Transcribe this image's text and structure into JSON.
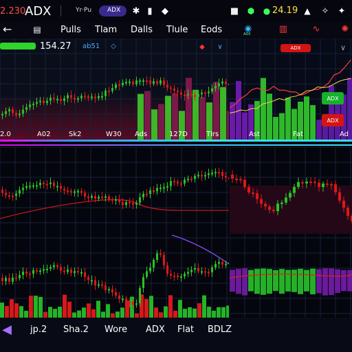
{
  "topbar": {
    "price": "2.230",
    "symbol": "ADX",
    "badge_left": "Yr·Pu",
    "badge_pill": "ADX",
    "right_value": "24.19",
    "icons": [
      "sun-icon",
      "chat-icon",
      "dice-icon",
      "lock-icon",
      "shield-icon",
      "leaf-icon",
      "bell-icon",
      "star-icon"
    ]
  },
  "nav": {
    "back": "←",
    "tabs": [
      "Pulls",
      "Tlam",
      "Dalls",
      "Tlule",
      "Eods"
    ],
    "icons": [
      "grid-icon",
      "globe-icon",
      "candles-icon",
      "wave-icon",
      "sun-icon"
    ],
    "globe_label": "ADX"
  },
  "main_header": {
    "left_value": "154.27",
    "left_badge": "ab51",
    "right_button": "ADX"
  },
  "right_panel": {
    "button_top": "ADX",
    "green_badge": "ADX",
    "red_badge": "ADX"
  },
  "axis_top": {
    "labels": [
      "2.0",
      "A02",
      "Sk2",
      "W30",
      "Ads",
      "127D",
      "Tlrs"
    ],
    "right_labels": [
      "Ast",
      "Fat",
      "Ad"
    ]
  },
  "bottom_bar": {
    "labels": [
      "jp.2",
      "Sha.2",
      "Wore",
      "ADX",
      "Flat",
      "BDLZ"
    ]
  },
  "colors": {
    "bg": "#05060c",
    "green": "#26c42a",
    "red": "#e01818",
    "purple": "#6e22a8",
    "cyan": "#38e0ff",
    "grid": "#1c2b4a"
  }
}
